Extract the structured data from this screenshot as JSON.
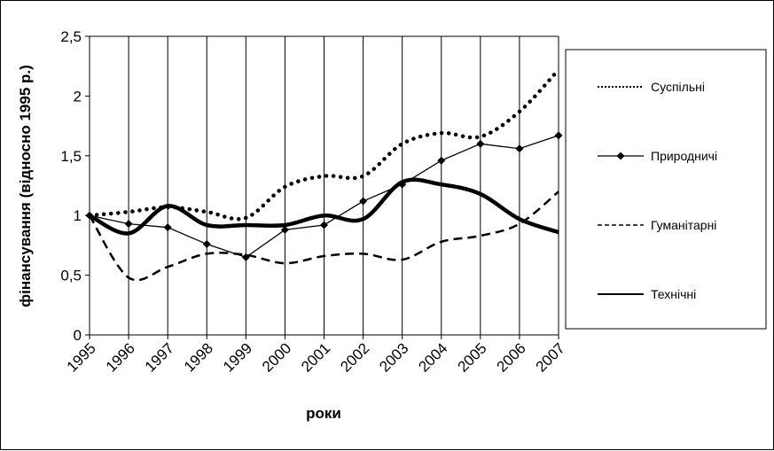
{
  "chart_data": {
    "type": "line",
    "title": "",
    "xlabel": "роки",
    "ylabel": "фінансування (відносно 1995 р.)",
    "categories": [
      "1995",
      "1996",
      "1997",
      "1998",
      "1999",
      "2000",
      "2001",
      "2002",
      "2003",
      "2004",
      "2005",
      "2006",
      "2007"
    ],
    "y_tick_labels": [
      "0",
      "0,5",
      "1",
      "1,5",
      "2",
      "2,5"
    ],
    "ylim": [
      0,
      2.5
    ],
    "grid": "vertical",
    "legend": "right",
    "series": [
      {
        "name": "Суспільні",
        "style": "dotted",
        "values": [
          1.0,
          1.03,
          1.07,
          1.03,
          0.98,
          1.24,
          1.33,
          1.33,
          1.6,
          1.69,
          1.66,
          1.87,
          2.22
        ]
      },
      {
        "name": "Природничі",
        "style": "diamond",
        "values": [
          1.0,
          0.93,
          0.9,
          0.76,
          0.65,
          0.88,
          0.92,
          1.12,
          1.26,
          1.46,
          1.6,
          1.56,
          1.67
        ]
      },
      {
        "name": "Гуманітарні",
        "style": "dashed",
        "values": [
          1.0,
          0.48,
          0.57,
          0.68,
          0.67,
          0.6,
          0.66,
          0.68,
          0.63,
          0.78,
          0.83,
          0.93,
          1.2
        ]
      },
      {
        "name": "Технічні",
        "style": "thick",
        "values": [
          1.0,
          0.85,
          1.08,
          0.92,
          0.92,
          0.92,
          1.0,
          0.97,
          1.28,
          1.26,
          1.18,
          0.97,
          0.86
        ]
      }
    ],
    "colors": {
      "line": "#000000",
      "grid": "#000000",
      "background": "#ffffff"
    }
  }
}
